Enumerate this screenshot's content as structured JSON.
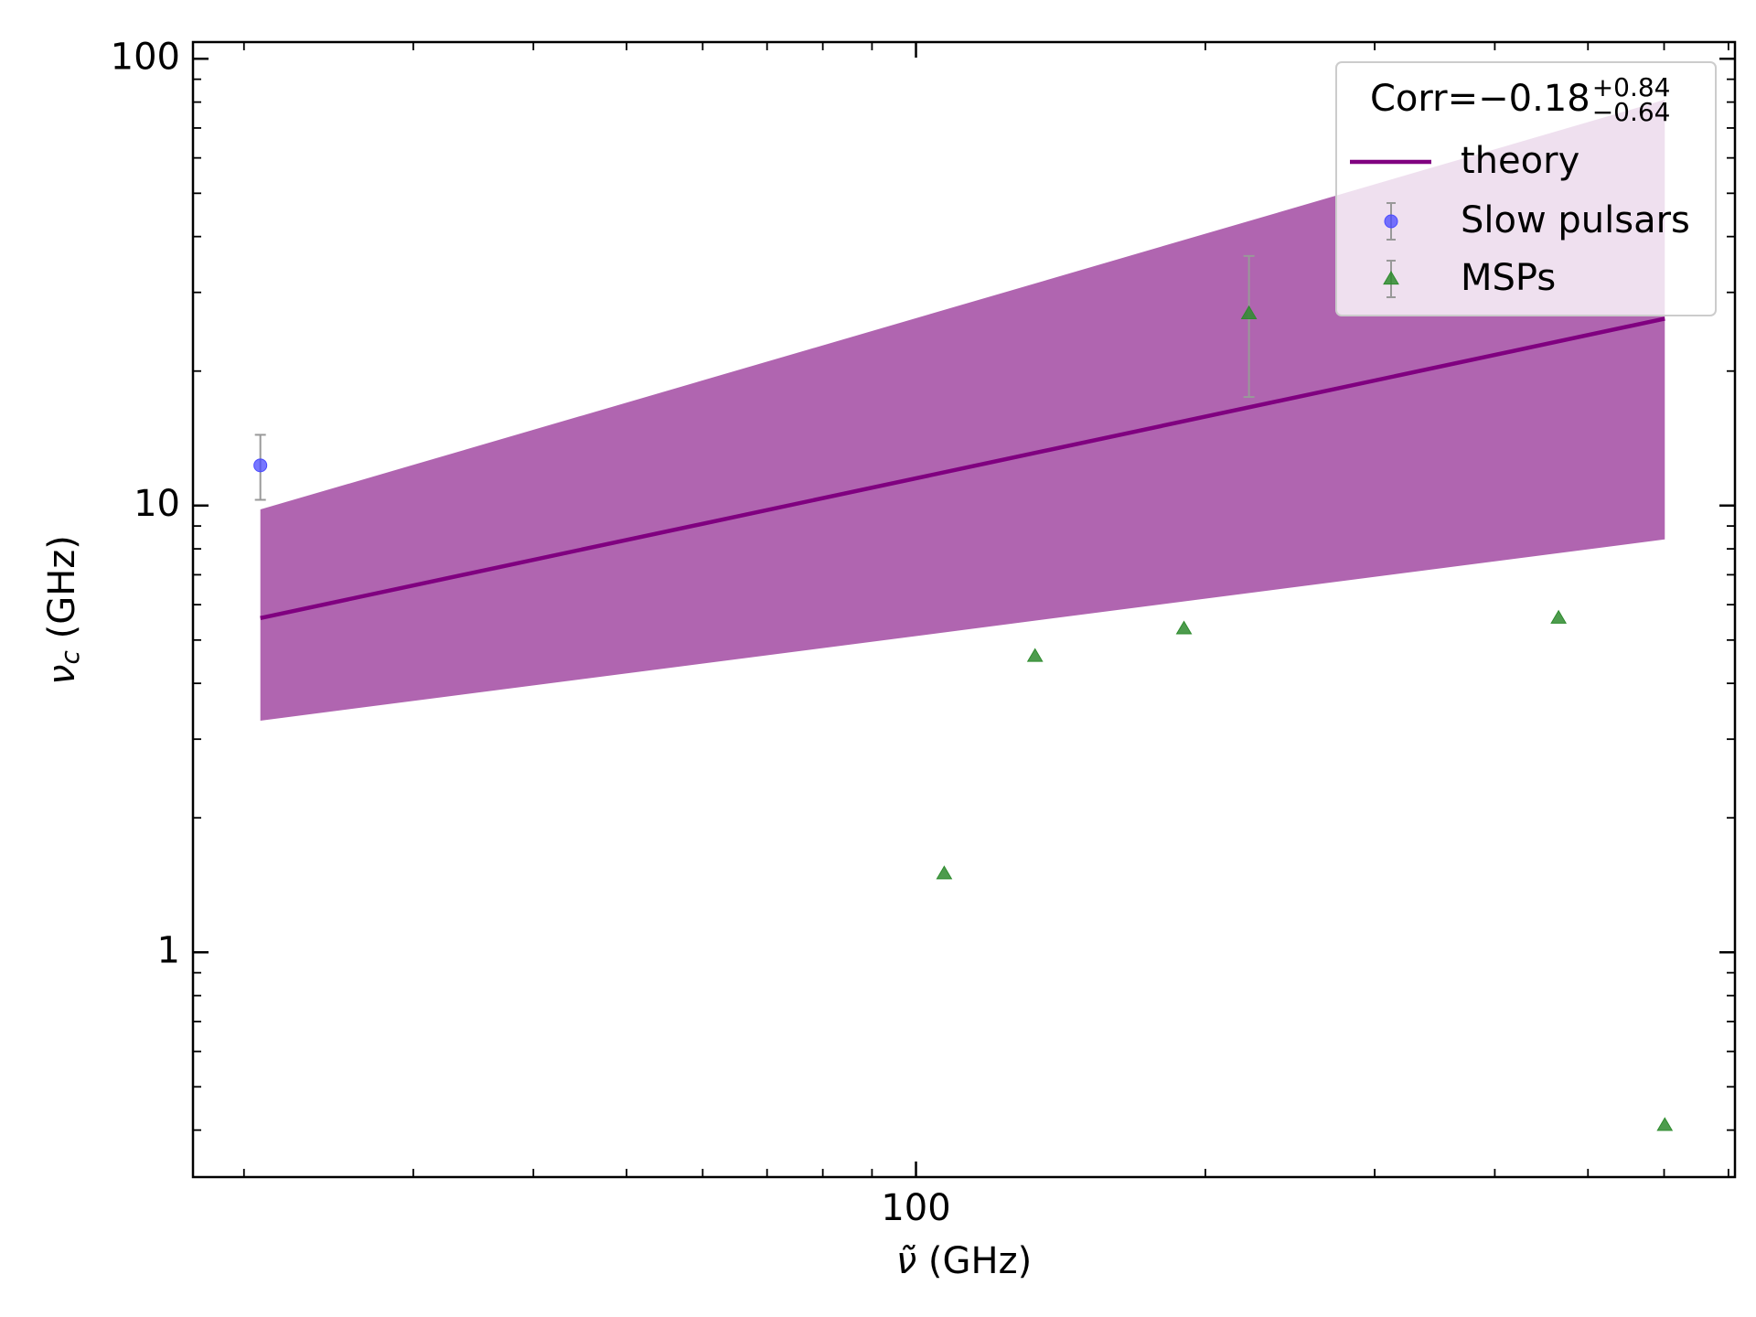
{
  "chart_data": {
    "type": "scatter",
    "xscale": "log",
    "yscale": "log",
    "xlabel": {
      "symbol": "ν̃",
      "unit": "(GHz)"
    },
    "ylabel": {
      "symbol": "ν",
      "sub": "c",
      "unit": "(GHz)"
    },
    "xlim": [
      17.7,
      711
    ],
    "ylim": [
      0.314,
      109
    ],
    "xticks": [
      100
    ],
    "yticks": [
      1,
      10,
      100
    ],
    "xminor": [
      20,
      30,
      40,
      50,
      60,
      70,
      80,
      90,
      200,
      300,
      400,
      500,
      600,
      700
    ],
    "yminor": [
      0.4,
      0.5,
      0.6,
      0.7,
      0.8,
      0.9,
      2,
      3,
      4,
      5,
      6,
      7,
      8,
      9,
      20,
      30,
      40,
      50,
      60,
      70,
      80,
      90
    ],
    "legend_loc": "upper right",
    "legend_title": {
      "main": "Corr=−0.18",
      "sup": "+0.84",
      "sub": "−0.64"
    },
    "band": {
      "color": "#b065b0",
      "x": [
        20.8,
        601
      ],
      "lower": [
        3.3,
        8.4
      ],
      "upper": [
        9.8,
        81
      ]
    },
    "line": {
      "name": "theory",
      "color": "#800080",
      "x": [
        20.8,
        601
      ],
      "y": [
        5.6,
        26.2
      ]
    },
    "series": [
      {
        "name": "Slow pulsars",
        "color": "#4a4aff",
        "marker": "circle",
        "x": [
          20.8
        ],
        "y": [
          12.3
        ],
        "yerr_low": [
          2.0
        ],
        "yerr_high": [
          2.1
        ]
      },
      {
        "name": "MSPs",
        "color": "#2e8b2e",
        "marker": "triangle",
        "x": [
          107,
          133,
          190,
          222,
          466,
          601
        ],
        "y": [
          1.5,
          4.6,
          5.3,
          26.9,
          5.6,
          0.41
        ],
        "yerr_low": [
          null,
          null,
          null,
          9.4,
          null,
          null
        ],
        "yerr_high": [
          null,
          null,
          null,
          9.3,
          null,
          null
        ]
      }
    ]
  }
}
